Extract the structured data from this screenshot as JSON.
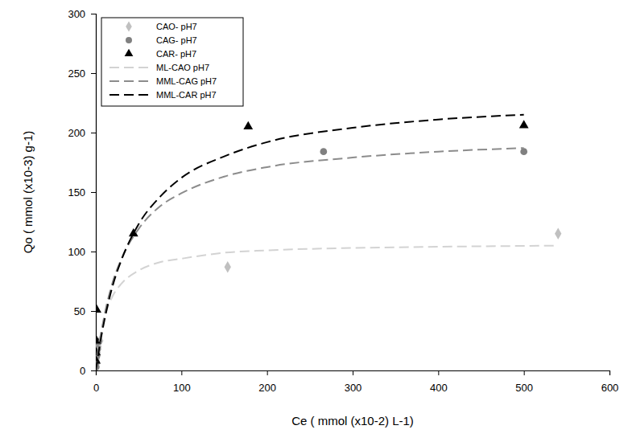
{
  "chart_data": {
    "type": "scatter",
    "x_label": "Ce ( mmol (x10-2) L-1)",
    "y_label": "Qo ( mmol (x10-3) g-1)",
    "xlim": [
      0,
      600
    ],
    "xticks": [
      0,
      100,
      200,
      300,
      400,
      500,
      600
    ],
    "ylim": [
      0,
      300
    ],
    "yticks": [
      0,
      50,
      100,
      150,
      200,
      250,
      300
    ],
    "legend": "upper left",
    "grid": false,
    "series": [
      {
        "name": "CAO- pH7",
        "type": "scatter",
        "marker": "diamond",
        "color": "#c0c0c0",
        "x": [
          0.2,
          0.5,
          1,
          2,
          3,
          5,
          154,
          540
        ],
        "values": [
          2,
          5,
          10,
          15,
          20,
          25,
          87,
          115
        ]
      },
      {
        "name": "CAG- pH7",
        "type": "scatter",
        "marker": "circle",
        "color": "#808080",
        "x": [
          0.3,
          0.6,
          1,
          2,
          3,
          266,
          500
        ],
        "values": [
          3,
          7,
          12,
          18,
          24,
          184,
          184
        ]
      },
      {
        "name": "CAR- pH7",
        "type": "scatter",
        "marker": "triangle",
        "color": "#000000",
        "x": [
          0.2,
          0.4,
          0.7,
          1,
          44,
          178,
          500
        ],
        "values": [
          8,
          15,
          25,
          51,
          115,
          205,
          206
        ]
      },
      {
        "name": "ML-CAO pH7",
        "type": "line",
        "line_style": "dashed",
        "color": "#d3d3d3",
        "x": [
          0,
          2,
          5,
          10,
          20,
          30,
          50,
          75,
          100,
          150,
          200,
          300,
          400,
          540
        ],
        "values": [
          0,
          13,
          28,
          44,
          63,
          73,
          84,
          91,
          94,
          99,
          101,
          103,
          104,
          105
        ]
      },
      {
        "name": "MML-CAG pH7",
        "type": "line",
        "line_style": "dashed",
        "color": "#8c8c8c",
        "x": [
          0,
          2,
          5,
          10,
          20,
          30,
          50,
          75,
          100,
          150,
          200,
          300,
          400,
          500
        ],
        "values": [
          0,
          11,
          26,
          46,
          75,
          94,
          119,
          138,
          149,
          163,
          171,
          179,
          184,
          187
        ]
      },
      {
        "name": "MML-CAR pH7",
        "type": "line",
        "line_style": "dashed",
        "color": "#000000",
        "x": [
          0,
          2,
          5,
          10,
          20,
          30,
          50,
          75,
          100,
          150,
          200,
          300,
          400,
          500
        ],
        "values": [
          0,
          10,
          23,
          42,
          72,
          93,
          123,
          146,
          162,
          180,
          192,
          204,
          211,
          215
        ]
      }
    ]
  }
}
